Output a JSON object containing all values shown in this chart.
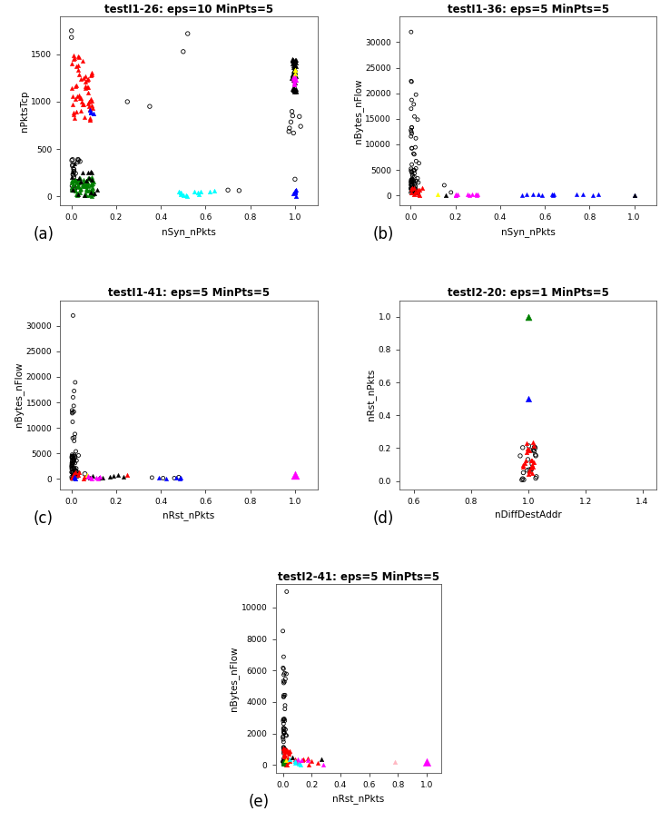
{
  "subplots": [
    {
      "title": "testI1-26: eps=10 MinPts=5",
      "xlabel": "nSyn_nPkts",
      "ylabel": "nPktsTcp",
      "xlim": [
        -0.05,
        1.1
      ],
      "ylim": [
        -100,
        1900
      ],
      "yticks": [
        0,
        500,
        1000,
        1500
      ],
      "xticks": [
        0.0,
        0.2,
        0.4,
        0.6,
        0.8,
        1.0
      ]
    },
    {
      "title": "testI1-36: eps=5 MinPts=5",
      "xlabel": "nSyn_nPkts",
      "ylabel": "nBytes_nFlow",
      "xlim": [
        -0.05,
        1.1
      ],
      "ylim": [
        -2000,
        35000
      ],
      "yticks": [
        0,
        5000,
        10000,
        15000,
        20000,
        25000,
        30000
      ],
      "xticks": [
        0.0,
        0.2,
        0.4,
        0.6,
        0.8,
        1.0
      ]
    },
    {
      "title": "testI1-41: eps=5 MinPts=5",
      "xlabel": "nRst_nPkts",
      "ylabel": "nBytes_nFlow",
      "xlim": [
        -0.05,
        1.1
      ],
      "ylim": [
        -2000,
        35000
      ],
      "yticks": [
        0,
        5000,
        10000,
        15000,
        20000,
        25000,
        30000
      ],
      "xticks": [
        0.0,
        0.2,
        0.4,
        0.6,
        0.8,
        1.0
      ]
    },
    {
      "title": "testI2-20: eps=1 MinPts=5",
      "xlabel": "nDiffDestAddr",
      "ylabel": "nRst_nPkts",
      "xlim": [
        0.55,
        1.45
      ],
      "ylim": [
        -0.05,
        1.1
      ],
      "yticks": [
        0.0,
        0.2,
        0.4,
        0.6,
        0.8,
        1.0
      ],
      "xticks": [
        0.6,
        0.8,
        1.0,
        1.2,
        1.4
      ]
    },
    {
      "title": "testI2-41: eps=5 MinPts=5",
      "xlabel": "nRst_nPkts",
      "ylabel": "nBytes_nFlow",
      "xlim": [
        -0.05,
        1.1
      ],
      "ylim": [
        -500,
        11500
      ],
      "yticks": [
        0,
        2000,
        4000,
        6000,
        8000,
        10000
      ],
      "xticks": [
        0.0,
        0.2,
        0.4,
        0.6,
        0.8,
        1.0
      ]
    }
  ],
  "panel_labels": [
    "(a)",
    "(b)",
    "(c)",
    "(d)",
    "(e)"
  ]
}
